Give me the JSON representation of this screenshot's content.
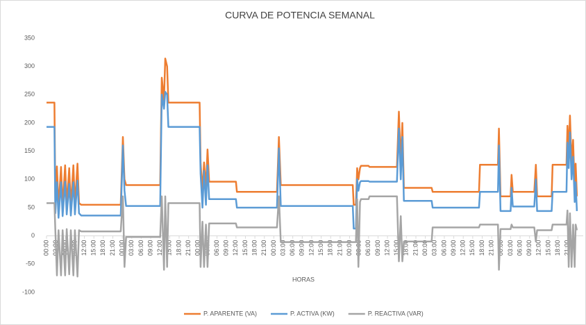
{
  "chart_data": {
    "type": "line",
    "title": "CURVA DE POTENCIA SEMANAL",
    "x_label": "HORAS",
    "x": [
      0,
      2.5,
      2.8,
      3.3,
      3.8,
      4.6,
      5.1,
      5.9,
      6.4,
      7.2,
      7.7,
      8.5,
      9.0,
      9.8,
      10.3,
      11,
      23.5,
      24.2,
      24.7,
      25.2,
      36,
      36.5,
      37.2,
      37.6,
      38.2,
      38.6,
      48.5,
      48.8,
      49.4,
      49.9,
      50.5,
      51,
      51.5,
      60,
      60.3,
      73,
      73.6,
      74.2,
      97,
      97.3,
      98,
      98.4,
      98.8,
      99.3,
      99.6,
      102,
      102.3,
      111,
      111.6,
      112.2,
      112.7,
      113.2,
      122,
      122.3,
      137,
      137.3,
      143,
      143.3,
      143.8,
      147,
      147.3,
      147.7,
      154.5,
      155,
      155.4,
      160,
      160.3,
      164.7,
      165,
      165.4,
      165.8,
      166.3,
      166.8,
      167.3,
      167.6,
      168
    ],
    "series": [
      {
        "name": "P. APARENTE (VA)",
        "color": "#ED7D31",
        "values": [
          236,
          236,
          60,
          123,
          50,
          122,
          52,
          125,
          55,
          120,
          52,
          125,
          55,
          128,
          58,
          55,
          55,
          175,
          100,
          90,
          90,
          280,
          240,
          314,
          300,
          236,
          236,
          130,
          80,
          130,
          85,
          153,
          96,
          96,
          78,
          78,
          175,
          90,
          90,
          55,
          55,
          120,
          100,
          120,
          124,
          124,
          122,
          122,
          220,
          130,
          200,
          85,
          85,
          78,
          78,
          126,
          126,
          190,
          70,
          70,
          108,
          78,
          78,
          126,
          70,
          70,
          126,
          126,
          195,
          150,
          213,
          130,
          170,
          80,
          128,
          70
        ]
      },
      {
        "name": "P. ACTIVA (KW)",
        "color": "#5B9BD5",
        "values": [
          193,
          193,
          40,
          95,
          32,
          95,
          35,
          96,
          38,
          92,
          36,
          95,
          38,
          98,
          40,
          36,
          36,
          160,
          80,
          53,
          53,
          250,
          225,
          255,
          250,
          193,
          193,
          110,
          50,
          115,
          55,
          125,
          65,
          65,
          50,
          50,
          155,
          53,
          53,
          13,
          13,
          100,
          80,
          95,
          97,
          97,
          96,
          96,
          190,
          100,
          175,
          62,
          62,
          50,
          50,
          78,
          78,
          160,
          44,
          44,
          85,
          52,
          52,
          100,
          44,
          44,
          78,
          78,
          165,
          120,
          183,
          100,
          140,
          60,
          95,
          44
        ]
      },
      {
        "name": "P. REACTIVA (VAR)",
        "color": "#A5A5A5",
        "values": [
          58,
          58,
          10,
          -70,
          10,
          -70,
          10,
          -70,
          12,
          -68,
          10,
          -70,
          10,
          -72,
          10,
          8,
          8,
          70,
          -55,
          -2,
          -2,
          70,
          -60,
          70,
          -55,
          58,
          58,
          -55,
          25,
          -55,
          20,
          -55,
          22,
          22,
          15,
          15,
          70,
          -11,
          -11,
          -11,
          -11,
          65,
          -55,
          60,
          65,
          65,
          70,
          70,
          -45,
          35,
          -45,
          -10,
          -10,
          15,
          15,
          20,
          20,
          -60,
          12,
          12,
          20,
          15,
          15,
          -10,
          10,
          10,
          20,
          20,
          45,
          -55,
          40,
          -55,
          20,
          -55,
          20,
          10
        ]
      }
    ],
    "xlim": [
      0,
      170
    ],
    "ylim": [
      -100,
      350
    ],
    "yticks": [
      -100,
      -50,
      0,
      50,
      100,
      150,
      200,
      250,
      300,
      350
    ],
    "xticks": [
      {
        "value": 0,
        "label": "00:00"
      },
      {
        "value": 3,
        "label": "03:00"
      },
      {
        "value": 6,
        "label": "06:00"
      },
      {
        "value": 9,
        "label": "09:00"
      },
      {
        "value": 12,
        "label": "12:00"
      },
      {
        "value": 15,
        "label": "15:00"
      },
      {
        "value": 18,
        "label": "18:00"
      },
      {
        "value": 21,
        "label": "21:00"
      },
      {
        "value": 24,
        "label": "00:00"
      },
      {
        "value": 27,
        "label": "03:00"
      },
      {
        "value": 30,
        "label": "06:00"
      },
      {
        "value": 33,
        "label": "09:00"
      },
      {
        "value": 36,
        "label": "12:00"
      },
      {
        "value": 39,
        "label": "15:00"
      },
      {
        "value": 42,
        "label": "18:00"
      },
      {
        "value": 45,
        "label": "21:00"
      },
      {
        "value": 48,
        "label": "00:00"
      },
      {
        "value": 51,
        "label": "03:00"
      },
      {
        "value": 54,
        "label": "06:00"
      },
      {
        "value": 57,
        "label": "09:00"
      },
      {
        "value": 60,
        "label": "12:00"
      },
      {
        "value": 63,
        "label": "15:00"
      },
      {
        "value": 66,
        "label": "18:00"
      },
      {
        "value": 69,
        "label": "21:00"
      },
      {
        "value": 72,
        "label": "00:00"
      },
      {
        "value": 75,
        "label": "03:00"
      },
      {
        "value": 78,
        "label": "06:00"
      },
      {
        "value": 81,
        "label": "09:00"
      },
      {
        "value": 84,
        "label": "12:00"
      },
      {
        "value": 87,
        "label": "15:00"
      },
      {
        "value": 90,
        "label": "18:00"
      },
      {
        "value": 93,
        "label": "21:00"
      },
      {
        "value": 96,
        "label": "00:00"
      },
      {
        "value": 99,
        "label": "03:00"
      },
      {
        "value": 102,
        "label": "06:00"
      },
      {
        "value": 105,
        "label": "09:00"
      },
      {
        "value": 108,
        "label": "12:00"
      },
      {
        "value": 111,
        "label": "15:00"
      },
      {
        "value": 114,
        "label": "18:00"
      },
      {
        "value": 117,
        "label": "21:00"
      },
      {
        "value": 120,
        "label": "00:00"
      },
      {
        "value": 123,
        "label": "03:00"
      },
      {
        "value": 126,
        "label": "06:00"
      },
      {
        "value": 129,
        "label": "09:00"
      },
      {
        "value": 132,
        "label": "12:00"
      },
      {
        "value": 135,
        "label": "15:00"
      },
      {
        "value": 138,
        "label": "18:00"
      },
      {
        "value": 141,
        "label": "21:00"
      },
      {
        "value": 144,
        "label": "00:00"
      },
      {
        "value": 147,
        "label": "03:00"
      },
      {
        "value": 150,
        "label": "06:00"
      },
      {
        "value": 153,
        "label": "09:00"
      },
      {
        "value": 156,
        "label": "12:00"
      },
      {
        "value": 159,
        "label": "15:00"
      },
      {
        "value": 162,
        "label": "18:00"
      },
      {
        "value": 165,
        "label": "21:00"
      }
    ],
    "grid": false,
    "legend": "bottom"
  }
}
